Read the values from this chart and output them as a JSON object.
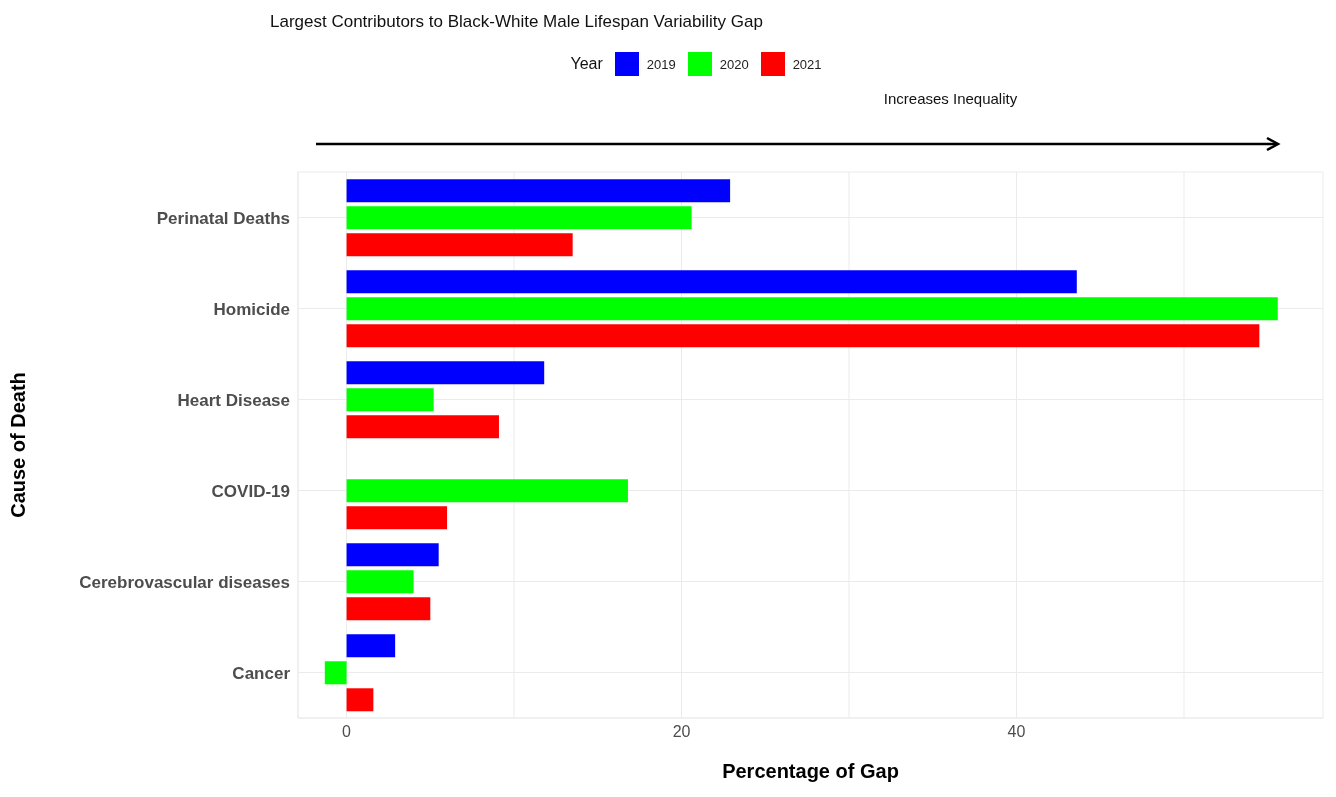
{
  "chart_data": {
    "type": "bar",
    "orientation": "horizontal",
    "title": "Largest Contributors to Black-White Male Lifespan Variability Gap",
    "xlabel": "Percentage of Gap",
    "ylabel": "Cause of Death",
    "legend_title": "Year",
    "legend": "top",
    "grid": true,
    "categories": [
      "Perinatal Deaths",
      "Homicide",
      "Heart Disease",
      "COVID-19",
      "Cerebrovascular diseases",
      "Cancer"
    ],
    "series": [
      {
        "name": "2019",
        "color": "#0000ff",
        "values": [
          22.9,
          43.6,
          11.8,
          null,
          5.5,
          2.9
        ]
      },
      {
        "name": "2020",
        "color": "#00ff00",
        "values": [
          20.6,
          55.6,
          5.2,
          16.8,
          4.0,
          -1.3
        ]
      },
      {
        "name": "2021",
        "color": "#ff0000",
        "values": [
          13.5,
          54.5,
          9.1,
          6.0,
          5.0,
          1.6
        ]
      }
    ],
    "xlim": [
      -2.9,
      58.3
    ],
    "xticks": [
      0,
      {
        "value": 10,
        "label": null
      },
      20,
      {
        "value": 30,
        "label": null
      },
      40,
      {
        "value": 50,
        "label": null
      }
    ],
    "annotations": [
      "Increases Inequality"
    ]
  }
}
